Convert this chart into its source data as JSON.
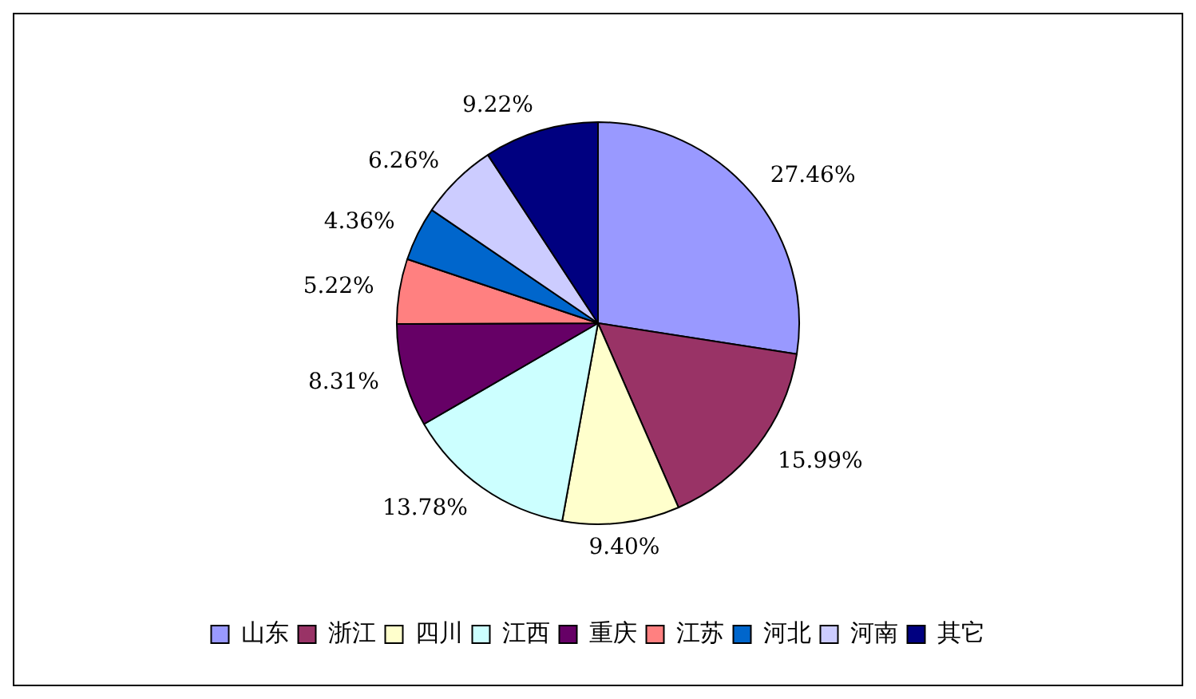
{
  "chart_data": {
    "type": "pie",
    "categories": [
      "山东",
      "浙江",
      "四川",
      "江西",
      "重庆",
      "江苏",
      "河北",
      "河南",
      "其它"
    ],
    "values": [
      27.46,
      15.99,
      9.4,
      13.78,
      8.31,
      5.22,
      4.36,
      6.26,
      9.22
    ],
    "colors": [
      "#9999ff",
      "#993366",
      "#ffffcc",
      "#ccffff",
      "#660066",
      "#ff8080",
      "#0066cc",
      "#ccccff",
      "#000080"
    ],
    "value_labels": [
      "27.46%",
      "15.99%",
      "9.40%",
      "13.78%",
      "8.31%",
      "5.22%",
      "4.36%",
      "6.26%",
      "9.22%"
    ],
    "legend": "bottom"
  }
}
